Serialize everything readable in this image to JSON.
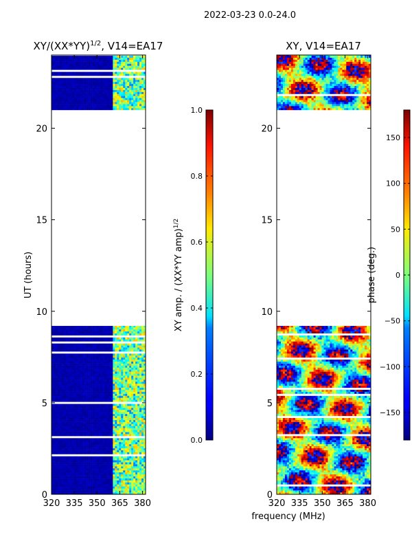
{
  "figure": {
    "suptitle": "2022-03-23 0.0-24.0",
    "shared_xlabel": "frequency (MHz)"
  },
  "chart_data": [
    {
      "type": "heatmap",
      "title": "XY/(XX*YY)",
      "title_exponent": "1/2",
      "title_suffix": ", V14=EA17",
      "xlabel": "",
      "ylabel": "UT (hours)",
      "xlim": [
        320,
        382
      ],
      "ylim": [
        0,
        24
      ],
      "xticks": [
        320,
        335,
        350,
        365,
        380
      ],
      "yticks": [
        0,
        5,
        10,
        15,
        20
      ],
      "data_ut_ranges": [
        [
          0,
          9.2
        ],
        [
          21,
          24
        ]
      ],
      "active_freq_range": [
        360,
        382
      ],
      "colorbar": {
        "label": "XY amp. / (XX*YY amp)",
        "label_exponent": "1/2",
        "range": [
          0.0,
          1.0
        ],
        "ticks": [
          "0.0",
          "0.2",
          "0.4",
          "0.6",
          "0.8",
          "1.0"
        ]
      }
    },
    {
      "type": "heatmap",
      "title": "XY, V14=EA17",
      "xlabel": "frequency (MHz)",
      "ylabel": "",
      "xlim": [
        320,
        382
      ],
      "ylim": [
        0,
        24
      ],
      "xticks": [
        320,
        335,
        350,
        365,
        380
      ],
      "yticks": [
        0,
        5,
        10,
        15,
        20
      ],
      "data_ut_ranges": [
        [
          0,
          9.2
        ],
        [
          21,
          24
        ]
      ],
      "colorbar": {
        "label": "phase (deg.)",
        "range": [
          -180,
          180
        ],
        "ticks": [
          "-150",
          "-100",
          "-50",
          "0",
          "50",
          "100",
          "150"
        ]
      }
    }
  ]
}
